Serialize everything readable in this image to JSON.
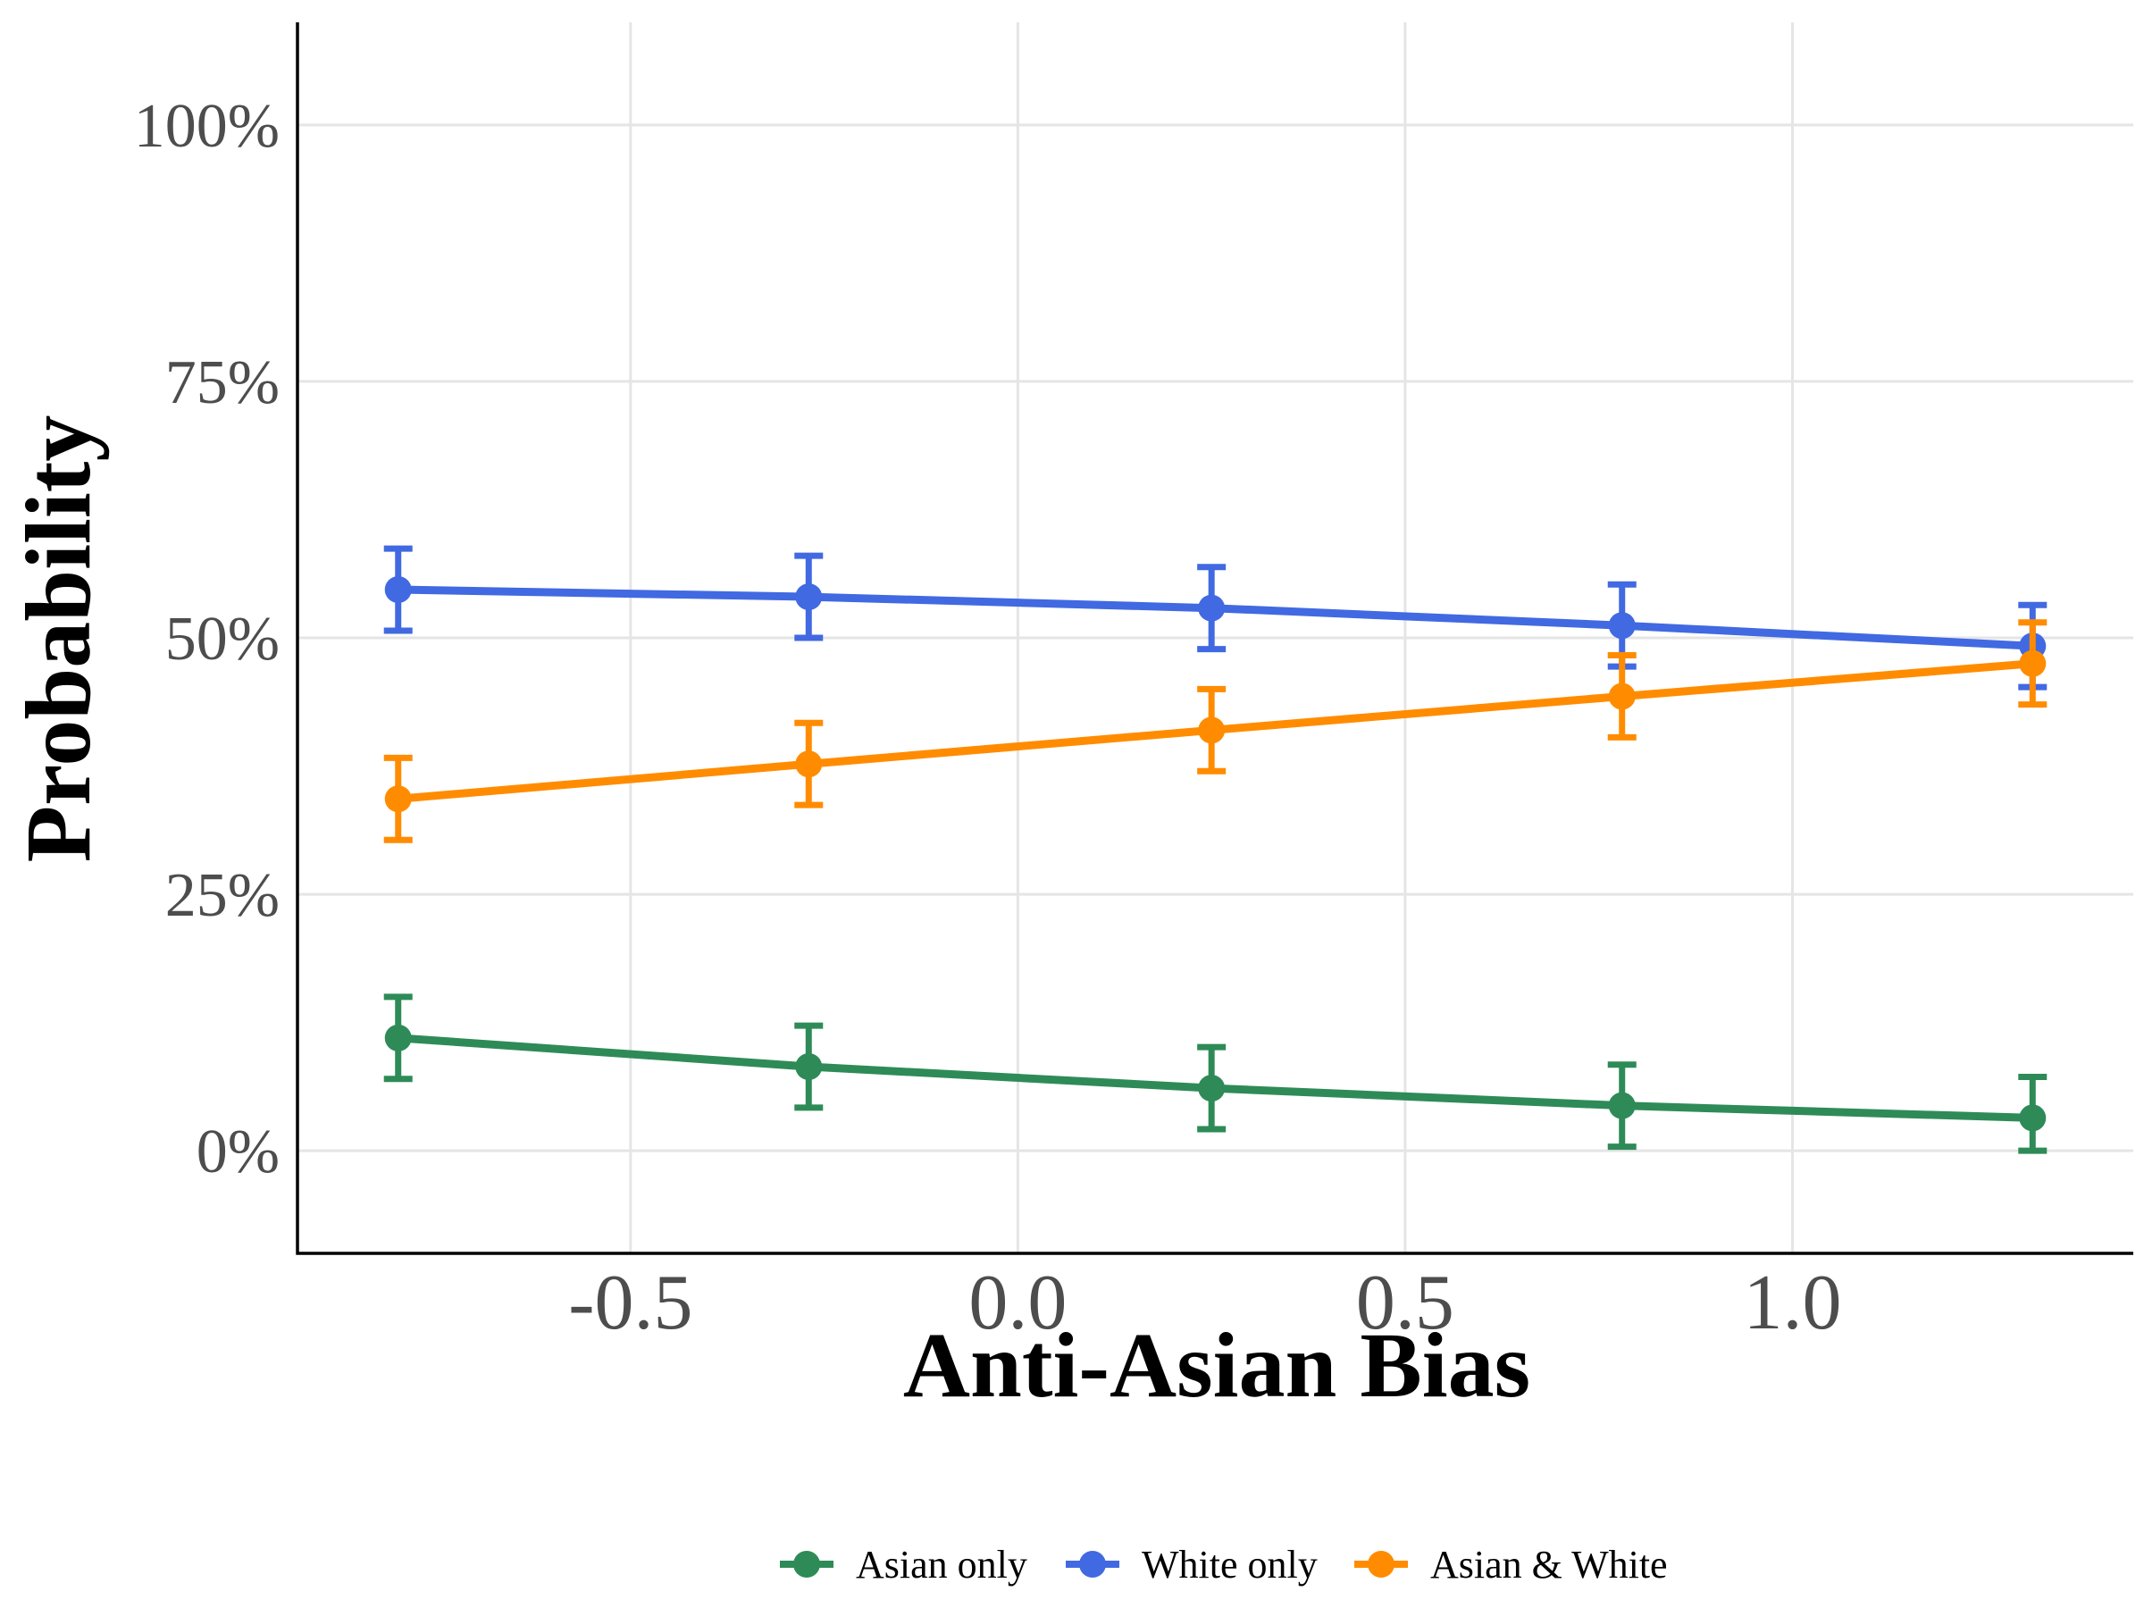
{
  "chart_data": {
    "type": "line",
    "xlabel": "Anti-Asian Bias",
    "ylabel": "Probability",
    "xlim": [
      -0.93,
      1.44
    ],
    "ylim": [
      -0.1,
      1.1
    ],
    "x_ticks": [
      -0.5,
      0.0,
      0.5,
      1.0
    ],
    "x_tick_labels": [
      "-0.5",
      "0.0",
      "0.5",
      "1.0"
    ],
    "y_ticks": [
      0,
      0.25,
      0.5,
      0.75,
      1.0
    ],
    "y_tick_labels": [
      "0%",
      "25%",
      "50%",
      "75%",
      "100%"
    ],
    "grid": true,
    "legend_position": "bottom",
    "x": [
      -0.8,
      -0.27,
      0.25,
      0.78,
      1.31
    ],
    "series": [
      {
        "name": "Asian only",
        "color": "#2E8B57",
        "values": [
          0.11,
          0.082,
          0.061,
          0.044,
          0.032
        ],
        "lower": [
          0.07,
          0.042,
          0.021,
          0.004,
          0.0
        ],
        "upper": [
          0.15,
          0.122,
          0.101,
          0.084,
          0.072
        ]
      },
      {
        "name": "White only",
        "color": "#4169E1",
        "values": [
          0.547,
          0.54,
          0.529,
          0.512,
          0.492
        ],
        "lower": [
          0.507,
          0.5,
          0.489,
          0.472,
          0.452
        ],
        "upper": [
          0.587,
          0.58,
          0.569,
          0.552,
          0.532
        ]
      },
      {
        "name": "Asian & White",
        "color": "#FF8C00",
        "values": [
          0.343,
          0.377,
          0.41,
          0.443,
          0.475
        ],
        "lower": [
          0.303,
          0.337,
          0.37,
          0.403,
          0.435
        ],
        "upper": [
          0.383,
          0.417,
          0.45,
          0.483,
          0.515
        ]
      }
    ]
  }
}
